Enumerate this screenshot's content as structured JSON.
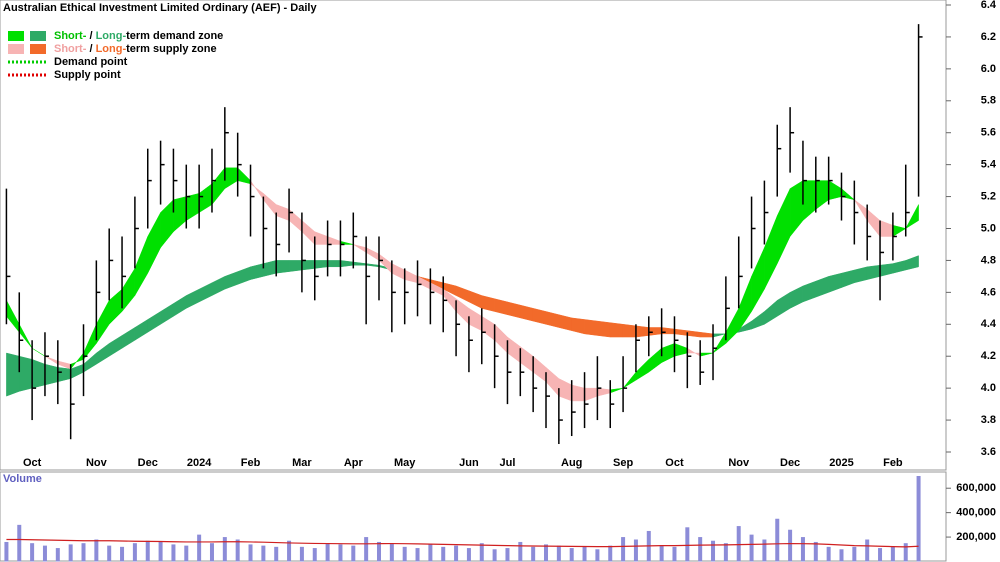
{
  "chart_data": {
    "type": "ohlc",
    "title": "Australian Ethical Investment Limited Ordinary (AEF) - Daily",
    "categories": [
      null,
      null,
      "Oct",
      null,
      null,
      null,
      null,
      "Nov",
      null,
      null,
      null,
      "Dec",
      null,
      null,
      null,
      "2024",
      null,
      null,
      null,
      "Feb",
      null,
      null,
      null,
      "Mar",
      null,
      null,
      null,
      "Apr",
      null,
      null,
      null,
      "May",
      null,
      null,
      null,
      null,
      "Jun",
      null,
      null,
      "Jul",
      null,
      null,
      null,
      null,
      "Aug",
      null,
      null,
      null,
      "Sep",
      null,
      null,
      null,
      "Oct",
      null,
      null,
      null,
      null,
      "Nov",
      null,
      null,
      null,
      "Dec",
      null,
      null,
      null,
      "2025",
      null,
      null,
      null,
      "Feb",
      null,
      null
    ],
    "close": [
      4.7,
      4.3,
      4.0,
      4.2,
      4.1,
      3.9,
      4.2,
      4.6,
      4.8,
      4.7,
      5.0,
      5.3,
      5.4,
      5.3,
      5.2,
      5.2,
      5.3,
      5.6,
      5.4,
      5.2,
      5.0,
      4.9,
      5.1,
      4.8,
      4.7,
      4.9,
      4.9,
      4.95,
      4.7,
      4.8,
      4.6,
      4.6,
      4.65,
      4.6,
      4.55,
      4.4,
      4.3,
      4.35,
      4.2,
      4.1,
      4.1,
      4.0,
      3.95,
      3.8,
      3.85,
      3.9,
      4.0,
      3.9,
      4.0,
      4.3,
      4.35,
      4.35,
      4.3,
      4.2,
      4.1,
      4.25,
      4.5,
      4.7,
      5.0,
      5.1,
      5.5,
      5.6,
      5.3,
      5.3,
      5.3,
      5.2,
      5.1,
      4.95,
      4.85,
      4.95,
      5.1,
      6.2
    ],
    "high": [
      5.25,
      4.6,
      4.3,
      4.35,
      4.3,
      4.15,
      4.4,
      4.8,
      5.0,
      4.95,
      5.2,
      5.5,
      5.55,
      5.5,
      5.4,
      5.4,
      5.5,
      5.76,
      5.6,
      5.4,
      5.2,
      5.1,
      5.25,
      5.1,
      4.95,
      5.05,
      5.05,
      5.1,
      4.95,
      4.95,
      4.8,
      4.75,
      4.8,
      4.75,
      4.7,
      4.55,
      4.45,
      4.5,
      4.4,
      4.3,
      4.25,
      4.2,
      4.1,
      4.0,
      4.05,
      4.1,
      4.2,
      4.05,
      4.2,
      4.4,
      4.45,
      4.5,
      4.45,
      4.35,
      4.3,
      4.4,
      4.7,
      4.95,
      5.2,
      5.3,
      5.65,
      5.76,
      5.55,
      5.45,
      5.45,
      5.35,
      5.3,
      5.15,
      5.05,
      5.1,
      5.4,
      6.28
    ],
    "low": [
      4.4,
      4.1,
      3.8,
      3.95,
      3.9,
      3.68,
      3.95,
      4.3,
      4.55,
      4.5,
      4.75,
      5.0,
      5.15,
      5.1,
      5.0,
      5.0,
      5.1,
      5.3,
      5.2,
      4.95,
      4.75,
      4.7,
      4.85,
      4.6,
      4.55,
      4.7,
      4.7,
      4.75,
      4.4,
      4.55,
      4.35,
      4.4,
      4.45,
      4.4,
      4.35,
      4.2,
      4.1,
      4.15,
      4.0,
      3.9,
      3.95,
      3.85,
      3.75,
      3.65,
      3.7,
      3.75,
      3.8,
      3.75,
      3.85,
      4.1,
      4.2,
      4.2,
      4.1,
      4.0,
      4.02,
      4.05,
      4.3,
      4.5,
      4.75,
      4.9,
      5.2,
      5.35,
      5.15,
      5.1,
      5.15,
      5.05,
      4.9,
      4.8,
      4.55,
      4.8,
      4.95,
      5.2
    ],
    "color": "#000000",
    "ylim": [
      3.6,
      6.4
    ],
    "yticks": [
      3.6,
      3.8,
      {
        "value": 4,
        "label": "4.0"
      },
      4.2,
      4.4,
      4.6,
      4.8,
      {
        "value": 5,
        "label": "5.0"
      },
      5.2,
      5.4,
      5.6,
      5.8,
      {
        "value": 6,
        "label": "6.0"
      },
      6.2,
      6.4
    ],
    "zones": {
      "short_fast": [
        4.55,
        4.4,
        4.25,
        4.2,
        4.15,
        4.12,
        4.22,
        4.4,
        4.55,
        4.62,
        4.75,
        4.95,
        5.1,
        5.18,
        5.2,
        5.22,
        5.28,
        5.38,
        5.38,
        5.3,
        5.18,
        5.08,
        5.05,
        4.98,
        4.9,
        4.9,
        4.9,
        4.9,
        4.85,
        4.8,
        4.72,
        4.68,
        4.66,
        4.62,
        4.58,
        4.48,
        4.4,
        4.36,
        4.3,
        4.22,
        4.16,
        4.1,
        4.04,
        3.95,
        3.92,
        3.92,
        3.95,
        3.97,
        4.0,
        4.1,
        4.18,
        4.25,
        4.28,
        4.25,
        4.2,
        4.22,
        4.35,
        4.5,
        4.7,
        4.88,
        5.08,
        5.25,
        5.3,
        5.3,
        5.3,
        5.25,
        5.18,
        5.05,
        4.95,
        4.95,
        5.0,
        5.15
      ],
      "short_slow": [
        4.45,
        4.35,
        4.25,
        4.2,
        4.17,
        4.15,
        4.18,
        4.28,
        4.4,
        4.48,
        4.58,
        4.72,
        4.88,
        4.98,
        5.05,
        5.1,
        5.15,
        5.25,
        5.3,
        5.28,
        5.22,
        5.15,
        5.12,
        5.05,
        4.98,
        4.95,
        4.92,
        4.9,
        4.88,
        4.84,
        4.78,
        4.74,
        4.7,
        4.66,
        4.62,
        4.56,
        4.5,
        4.45,
        4.4,
        4.32,
        4.26,
        4.2,
        4.13,
        4.06,
        4.02,
        4.0,
        4.0,
        3.99,
        4.0,
        4.05,
        4.1,
        4.16,
        4.2,
        4.22,
        4.22,
        4.22,
        4.28,
        4.36,
        4.48,
        4.62,
        4.78,
        4.95,
        5.05,
        5.12,
        5.18,
        5.2,
        5.18,
        5.12,
        5.05,
        5.02,
        5.0,
        5.05
      ],
      "long_fast": [
        4.22,
        4.2,
        4.18,
        4.15,
        4.13,
        4.12,
        4.15,
        4.22,
        4.28,
        4.33,
        4.38,
        4.43,
        4.48,
        4.53,
        4.58,
        4.62,
        4.66,
        4.7,
        4.73,
        4.76,
        4.78,
        4.8,
        4.8,
        4.8,
        4.8,
        4.8,
        4.8,
        4.79,
        4.78,
        4.77,
        4.75,
        4.72,
        4.7,
        4.66,
        4.62,
        4.58,
        4.54,
        4.5,
        4.48,
        4.46,
        4.44,
        4.42,
        4.4,
        4.38,
        4.36,
        4.34,
        4.33,
        4.32,
        4.32,
        4.32,
        4.33,
        4.34,
        4.34,
        4.33,
        4.32,
        4.32,
        4.34,
        4.37,
        4.42,
        4.48,
        4.55,
        4.6,
        4.64,
        4.67,
        4.7,
        4.72,
        4.74,
        4.76,
        4.77,
        4.78,
        4.8,
        4.83
      ],
      "long_slow": [
        3.95,
        3.98,
        4.0,
        4.02,
        4.04,
        4.06,
        4.1,
        4.15,
        4.2,
        4.25,
        4.3,
        4.35,
        4.4,
        4.45,
        4.5,
        4.54,
        4.58,
        4.62,
        4.65,
        4.68,
        4.7,
        4.72,
        4.73,
        4.74,
        4.75,
        4.76,
        4.76,
        4.77,
        4.77,
        4.76,
        4.74,
        4.72,
        4.7,
        4.68,
        4.66,
        4.64,
        4.61,
        4.58,
        4.56,
        4.54,
        4.52,
        4.5,
        4.48,
        4.46,
        4.44,
        4.43,
        4.42,
        4.41,
        4.4,
        4.39,
        4.38,
        4.38,
        4.37,
        4.36,
        4.35,
        4.34,
        4.34,
        4.35,
        4.37,
        4.4,
        4.45,
        4.5,
        4.54,
        4.57,
        4.6,
        4.63,
        4.66,
        4.68,
        4.7,
        4.72,
        4.74,
        4.76
      ]
    },
    "legend": [
      {
        "short": "Short-",
        "sep": " / ",
        "long": "Long-",
        "rest": "term demand zone",
        "short_color": "#00e000",
        "long_color": "#2eaa66",
        "text_short_color": "#00c000",
        "text_long_color": "#2eaa66"
      },
      {
        "short": "Short-",
        "sep": " / ",
        "long": "Long-",
        "rest": "term supply zone",
        "short_color": "#f7b4b4",
        "long_color": "#f26a2a",
        "text_short_color": "#f0a0a0",
        "text_long_color": "#f26a2a"
      },
      {
        "text": "Demand point",
        "color": "#00cc00"
      },
      {
        "text": "Supply point",
        "color": "#e00000"
      }
    ],
    "volume": {
      "label": "Volume",
      "values": [
        160000,
        300000,
        150000,
        130000,
        110000,
        140000,
        150000,
        180000,
        130000,
        120000,
        150000,
        170000,
        160000,
        140000,
        130000,
        220000,
        150000,
        200000,
        180000,
        140000,
        130000,
        120000,
        170000,
        120000,
        110000,
        150000,
        140000,
        130000,
        200000,
        160000,
        150000,
        120000,
        110000,
        140000,
        120000,
        130000,
        110000,
        150000,
        100000,
        110000,
        160000,
        120000,
        140000,
        130000,
        110000,
        120000,
        100000,
        130000,
        200000,
        180000,
        250000,
        130000,
        120000,
        280000,
        200000,
        170000,
        150000,
        290000,
        220000,
        180000,
        350000,
        260000,
        200000,
        160000,
        120000,
        100000,
        120000,
        180000,
        110000,
        120000,
        150000,
        700000
      ],
      "ma_values": [
        180000,
        180000,
        178000,
        176000,
        174000,
        172000,
        170000,
        170000,
        170000,
        168000,
        166000,
        165000,
        164000,
        162000,
        160000,
        160000,
        160000,
        162000,
        162000,
        160000,
        158000,
        155000,
        152000,
        150000,
        148000,
        147000,
        146000,
        145000,
        145000,
        146000,
        147000,
        146000,
        144000,
        142000,
        140000,
        138000,
        136000,
        134000,
        132000,
        130000,
        128000,
        127000,
        126000,
        125000,
        124000,
        123000,
        122000,
        122000,
        124000,
        126000,
        128000,
        130000,
        130000,
        132000,
        134000,
        135000,
        136000,
        138000,
        140000,
        142000,
        145000,
        147000,
        146000,
        144000,
        140000,
        135000,
        130000,
        128000,
        125000,
        122000,
        120000,
        125000
      ],
      "color": "#8c8cd8",
      "ma_color": "#d02020",
      "ylim": [
        0,
        700000
      ],
      "yticks": [
        {
          "value": 200000,
          "label": "200,000"
        },
        {
          "value": 400000,
          "label": "400,000"
        },
        {
          "value": 600000,
          "label": "600,000"
        }
      ]
    }
  }
}
